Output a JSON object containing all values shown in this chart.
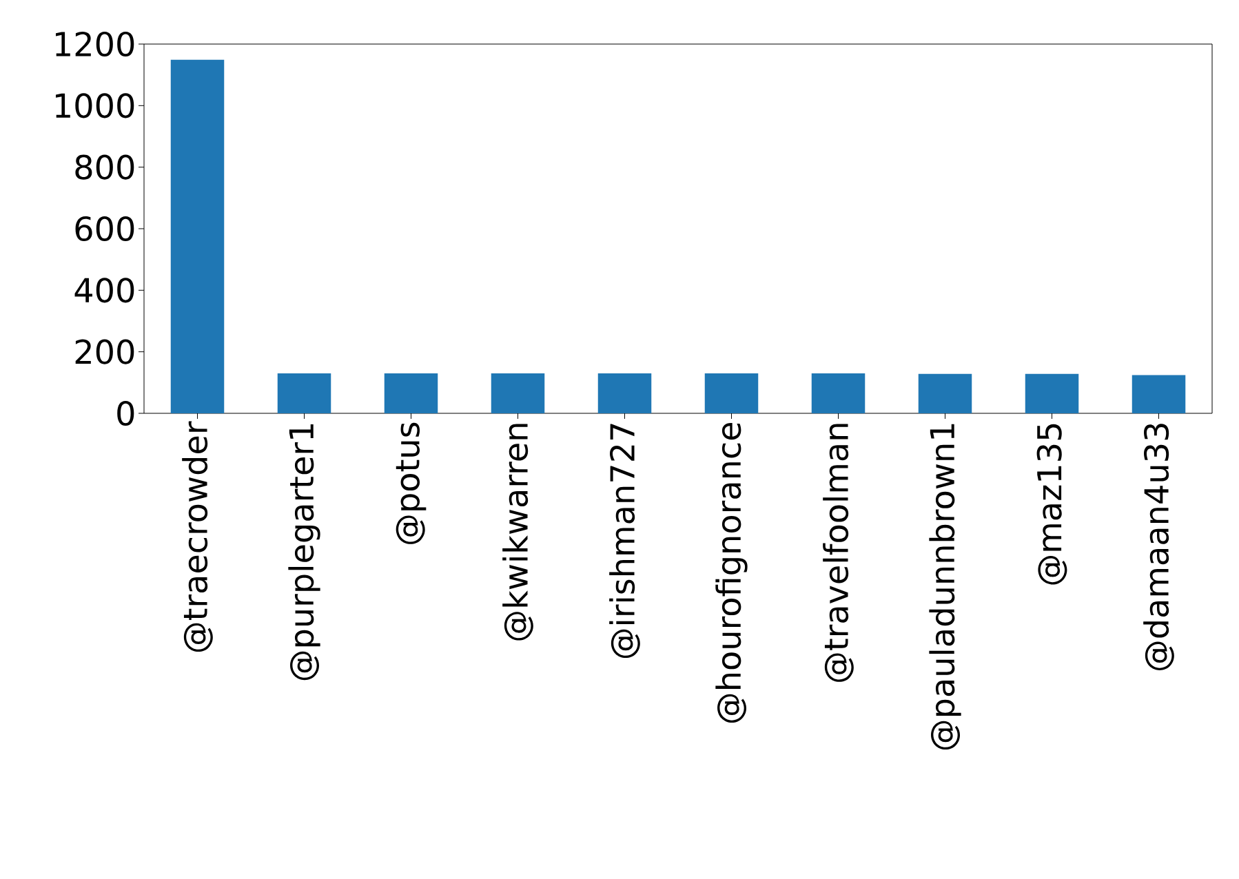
{
  "chart_data": {
    "type": "bar",
    "categories": [
      "@traecrowder",
      "@purplegarter1",
      "@potus",
      "@kwikwarren",
      "@irishman727",
      "@hourofignorance",
      "@travelfoolman",
      "@pauladunnbrown1",
      "@maz135",
      "@damaan4u33"
    ],
    "values": [
      1149,
      130,
      130,
      130,
      130,
      130,
      130,
      128,
      128,
      124
    ],
    "color": "#1f77b4",
    "ylim": [
      0,
      1200
    ],
    "yticks": [
      0,
      200,
      400,
      600,
      800,
      1000,
      1200
    ],
    "grid": false
  }
}
